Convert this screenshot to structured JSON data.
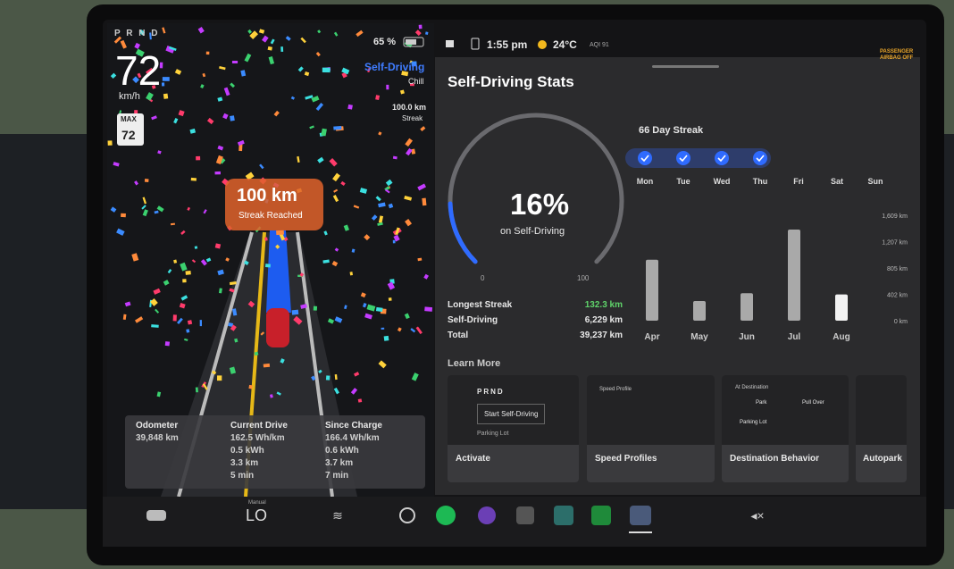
{
  "status": {
    "gears": "P R N D",
    "speed": "72",
    "speed_unit": "km/h",
    "limit_label": "MAX",
    "speed_limit": "72",
    "battery": "65 %",
    "mode": "Self-Driving",
    "profile": "Chill",
    "streak_distance": "100.0 km",
    "streak_label": "Streak",
    "time": "1:55 pm",
    "temperature": "24°C",
    "aqi": "AQI 91",
    "airbag": "PASSENGER AIRBAG OFF"
  },
  "banner": {
    "title": "100 km",
    "subtitle": "Streak Reached"
  },
  "stats": {
    "title": "Self-Driving Stats",
    "gauge": {
      "value": 16,
      "label": "16%",
      "caption": "on Self-Driving",
      "min": 0,
      "max": 100
    },
    "streak_title": "66 Day Streak",
    "days": [
      {
        "name": "Mon",
        "done": true
      },
      {
        "name": "Tue",
        "done": true
      },
      {
        "name": "Wed",
        "done": true
      },
      {
        "name": "Thu",
        "done": true
      },
      {
        "name": "Fri",
        "done": false
      },
      {
        "name": "Sat",
        "done": false
      },
      {
        "name": "Sun",
        "done": false
      }
    ],
    "totals": [
      {
        "label": "Longest Streak",
        "value": "132.3 km"
      },
      {
        "label": "Self-Driving",
        "value": "6,229 km"
      },
      {
        "label": "Total",
        "value": "39,237 km"
      }
    ]
  },
  "chart_data": {
    "type": "bar",
    "categories": [
      "Apr",
      "May",
      "Jun",
      "Jul",
      "Aug"
    ],
    "values": [
      930,
      300,
      420,
      1390,
      400
    ],
    "colors": [
      "#a9a9a9",
      "#a9a9a9",
      "#a9a9a9",
      "#a9a9a9",
      "#f2f2f2"
    ],
    "ylim": [
      0,
      1609
    ],
    "yticks": [
      {
        "value": 0,
        "label": "0 km"
      },
      {
        "value": 402,
        "label": "402 km"
      },
      {
        "value": 805,
        "label": "805 km"
      },
      {
        "value": 1207,
        "label": "1,207 km"
      },
      {
        "value": 1609,
        "label": "1,609 km"
      }
    ]
  },
  "learn_more": {
    "title": "Learn More",
    "cards": [
      {
        "label": "Activate",
        "preview": [
          "PRND",
          "Start Self-Driving",
          "Parking Lot"
        ]
      },
      {
        "label": "Speed Profiles",
        "preview": [
          "Speed Profile"
        ]
      },
      {
        "label": "Destination Behavior",
        "preview": [
          "At Destination",
          "Park",
          "Pull Over",
          "Parking Lot"
        ]
      },
      {
        "label": "Autopark"
      }
    ]
  },
  "trip": [
    {
      "title": "Odometer",
      "lines": [
        "39,848 km"
      ]
    },
    {
      "title": "Current Drive",
      "lines": [
        "162.5 Wh/km",
        "0.5 kWh",
        "3.3 km",
        "5 min"
      ]
    },
    {
      "title": "Since Charge",
      "lines": [
        "166.4 Wh/km",
        "0.6 kWh",
        "3.7 km",
        "7 min"
      ]
    }
  ],
  "dock": {
    "climate_mode": "Manual",
    "climate_temp": "LO"
  }
}
